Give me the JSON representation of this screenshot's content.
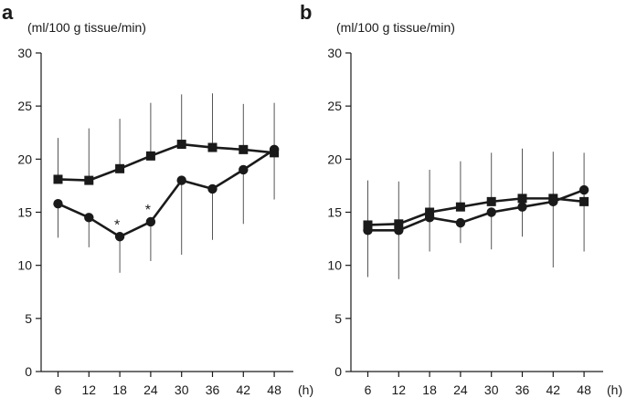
{
  "chart_data": [
    {
      "panel": "a",
      "type": "line",
      "ylabel": "(ml/100 g tissue/min)",
      "xunit": "(h)",
      "categories": [
        "6",
        "12",
        "18",
        "24",
        "30",
        "36",
        "42",
        "48"
      ],
      "ylim": [
        0,
        30
      ],
      "yticks": [
        "0",
        "5",
        "10",
        "15",
        "20",
        "25",
        "30"
      ],
      "series": [
        {
          "name": "squares",
          "marker": "square",
          "values": [
            18.1,
            18.0,
            19.1,
            20.3,
            21.4,
            21.1,
            20.9,
            20.6
          ],
          "err_low": [
            18.1,
            18.0,
            19.1,
            20.3,
            21.4,
            21.1,
            20.9,
            20.6
          ],
          "err_high": [
            22.0,
            22.9,
            23.8,
            25.3,
            26.1,
            26.2,
            25.2,
            25.3
          ]
        },
        {
          "name": "circles",
          "marker": "circle",
          "values": [
            15.8,
            14.5,
            12.7,
            14.1,
            18.0,
            17.2,
            19.0,
            20.9
          ],
          "err_low": [
            12.6,
            11.7,
            9.3,
            10.4,
            11.0,
            12.4,
            13.9,
            16.2
          ],
          "err_high": [
            15.8,
            14.5,
            12.7,
            14.1,
            18.0,
            17.2,
            19.0,
            20.9
          ]
        }
      ],
      "annotations": [
        {
          "text": "*",
          "category": "18"
        },
        {
          "text": "*",
          "category": "24"
        }
      ]
    },
    {
      "panel": "b",
      "type": "line",
      "ylabel": "(ml/100 g tissue/min)",
      "xunit": "(h)",
      "categories": [
        "6",
        "12",
        "18",
        "24",
        "30",
        "36",
        "42",
        "48"
      ],
      "ylim": [
        0,
        30
      ],
      "yticks": [
        "0",
        "5",
        "10",
        "15",
        "20",
        "25",
        "30"
      ],
      "series": [
        {
          "name": "squares",
          "marker": "square",
          "values": [
            13.8,
            13.9,
            15.0,
            15.5,
            16.0,
            16.3,
            16.3,
            16.0
          ],
          "err_low": [
            13.8,
            13.9,
            15.0,
            15.5,
            16.0,
            16.3,
            16.3,
            16.0
          ],
          "err_high": [
            18.0,
            17.9,
            19.0,
            19.8,
            20.6,
            21.0,
            20.7,
            20.6
          ]
        },
        {
          "name": "circles",
          "marker": "circle",
          "values": [
            13.3,
            13.3,
            14.5,
            14.0,
            15.0,
            15.5,
            16.0,
            17.1
          ],
          "err_low": [
            8.9,
            8.7,
            11.3,
            12.1,
            11.5,
            12.7,
            9.8,
            11.3
          ],
          "err_high": [
            13.3,
            13.3,
            14.5,
            14.0,
            15.0,
            15.5,
            16.0,
            17.1
          ]
        }
      ],
      "annotations": []
    }
  ]
}
